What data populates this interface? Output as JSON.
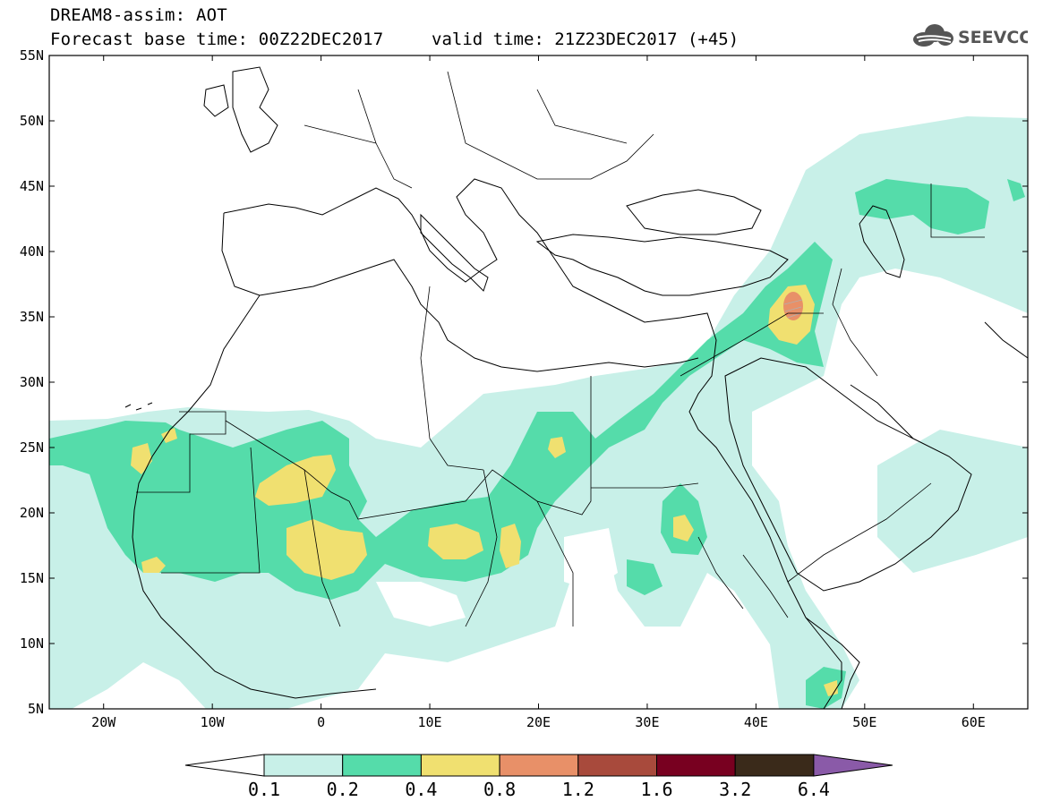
{
  "header": {
    "title_line1": "DREAM8-assim: AOT",
    "title_line2": "Forecast base time: 00Z22DEC2017",
    "valid_time": "valid time: 21Z23DEC2017 (+45)",
    "logo_text": "SEEVCCC",
    "logo_icon": "cloud-icon"
  },
  "map": {
    "lon_range": [
      -25,
      65
    ],
    "lat_range": [
      5,
      55
    ],
    "lat_labels": [
      "5N",
      "10N",
      "15N",
      "20N",
      "25N",
      "30N",
      "35N",
      "40N",
      "45N",
      "50N",
      "55N"
    ],
    "lon_labels": [
      "20W",
      "10W",
      "0",
      "10E",
      "20E",
      "30E",
      "40E",
      "50E",
      "60E"
    ],
    "lat_values": [
      5,
      10,
      15,
      20,
      25,
      30,
      35,
      40,
      45,
      50,
      55
    ],
    "lon_values": [
      -20,
      -10,
      0,
      10,
      20,
      30,
      40,
      50,
      60
    ]
  },
  "colorbar": {
    "levels": [
      "0.1",
      "0.2",
      "0.4",
      "0.8",
      "1.2",
      "1.6",
      "3.2",
      "6.4"
    ],
    "colors": [
      "#c8f0e8",
      "#55dcaa",
      "#f0e070",
      "#e89068",
      "#a84a3c",
      "#780020",
      "#3a2a1a",
      "#8a5aa8"
    ]
  },
  "colors": {
    "aot_0_1": "#c8f0e8",
    "aot_0_2": "#55dcaa",
    "aot_0_4": "#f0e070",
    "aot_0_8": "#e89068"
  }
}
